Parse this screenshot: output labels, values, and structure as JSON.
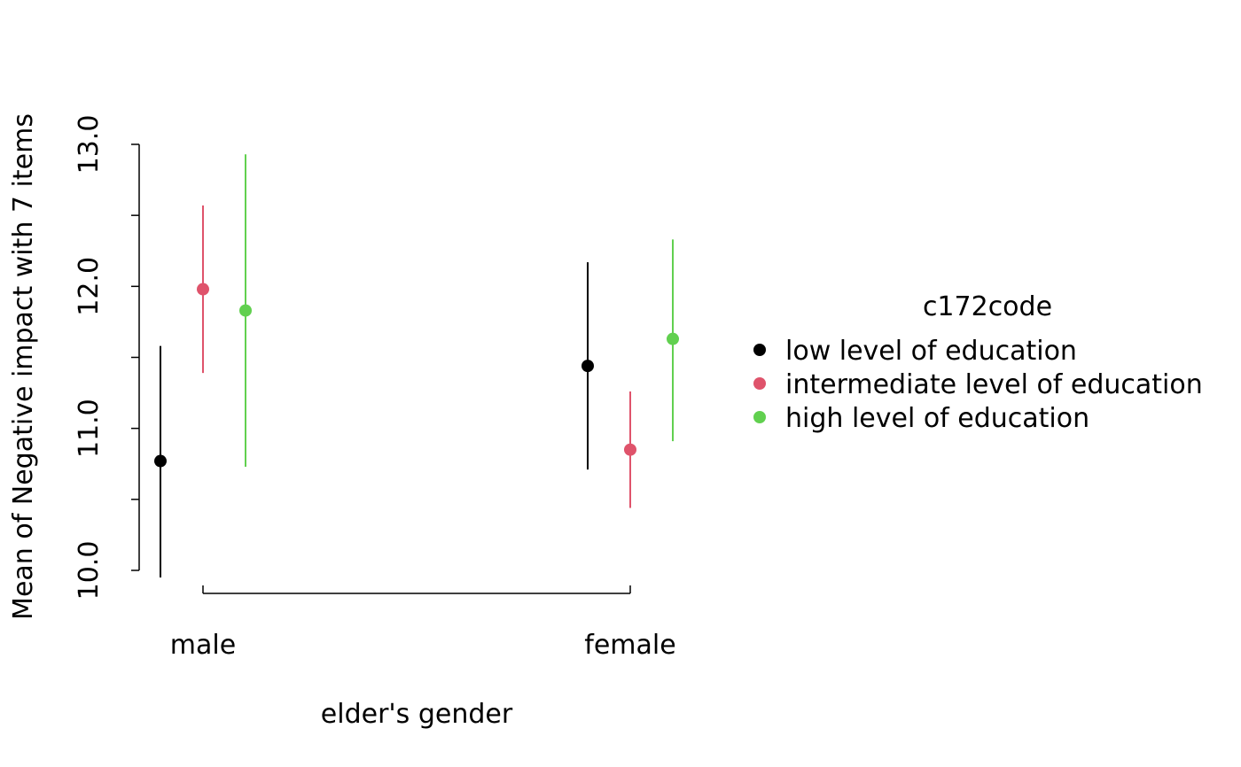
{
  "chart_data": {
    "type": "errorbar",
    "title": "",
    "xlabel": "elder's gender",
    "ylabel": "Mean of Negative impact with 7 items",
    "categories": [
      "male",
      "female"
    ],
    "ylim": [
      10.0,
      13.0
    ],
    "yticks": [
      10.0,
      10.5,
      11.0,
      11.5,
      12.0,
      12.5,
      13.0
    ],
    "ytick_labels": [
      "10.0",
      "",
      "11.0",
      "",
      "12.0",
      "",
      "13.0"
    ],
    "grid": false,
    "legend": {
      "title": "c172code",
      "placement": "right",
      "entries": [
        "low level of education",
        "intermediate level of education",
        "high level of education"
      ]
    },
    "series": [
      {
        "name": "low level of education",
        "color": "#000000",
        "means": [
          10.77,
          11.44
        ],
        "lower": [
          9.95,
          10.71
        ],
        "upper": [
          11.58,
          12.17
        ]
      },
      {
        "name": "intermediate level of education",
        "color": "#DF536B",
        "means": [
          11.98,
          10.85
        ],
        "lower": [
          11.39,
          10.44
        ],
        "upper": [
          12.57,
          11.26
        ]
      },
      {
        "name": "high level of education",
        "color": "#61D04F",
        "means": [
          11.83,
          11.63
        ],
        "lower": [
          10.73,
          10.91
        ],
        "upper": [
          12.93,
          12.33
        ]
      }
    ]
  }
}
